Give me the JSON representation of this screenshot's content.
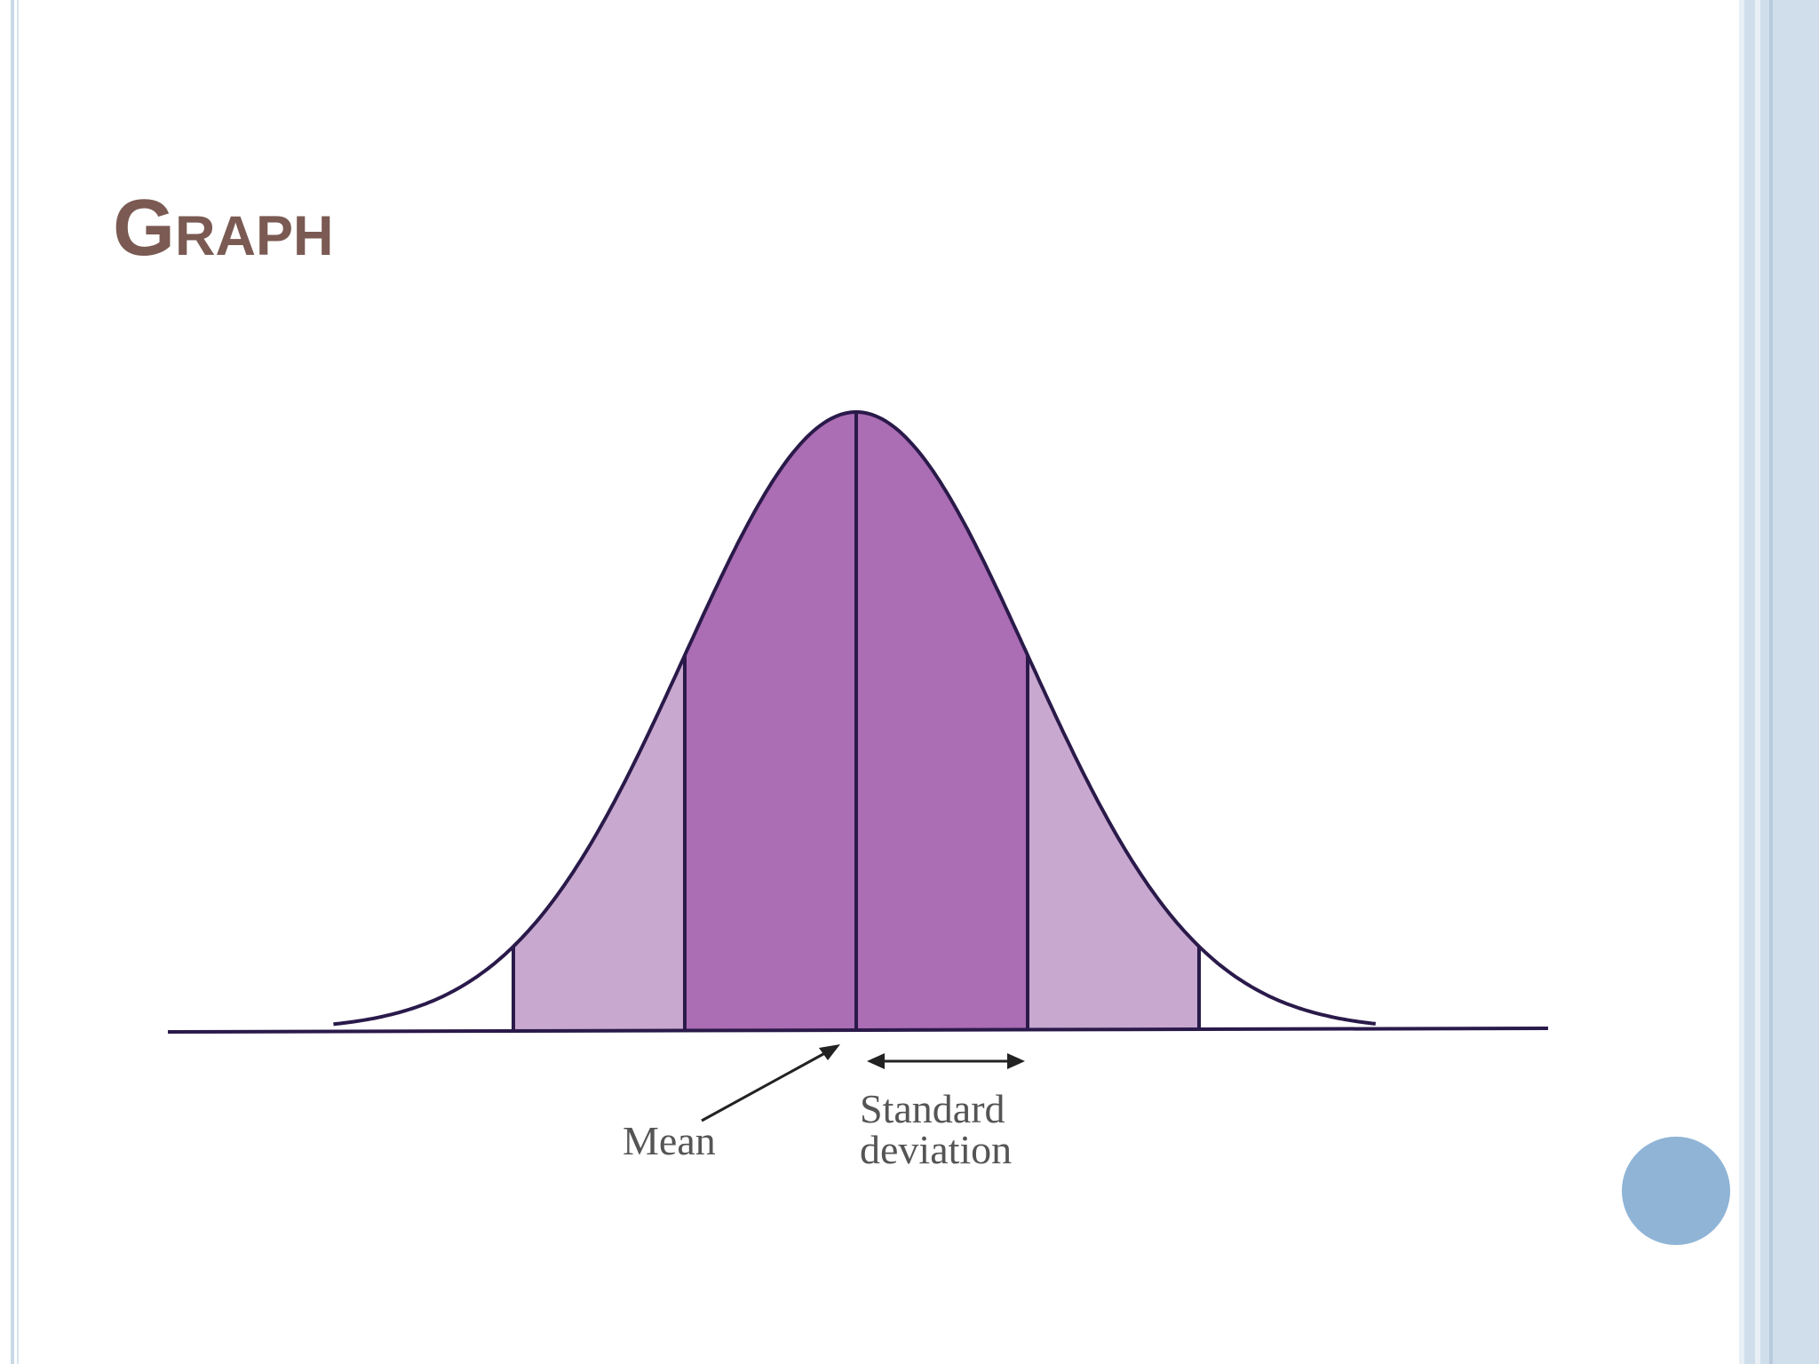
{
  "header": {
    "title": "Graph"
  },
  "diagram": {
    "labels": {
      "mean": "Mean",
      "standard_deviation": [
        "Standard",
        "deviation"
      ]
    }
  }
}
